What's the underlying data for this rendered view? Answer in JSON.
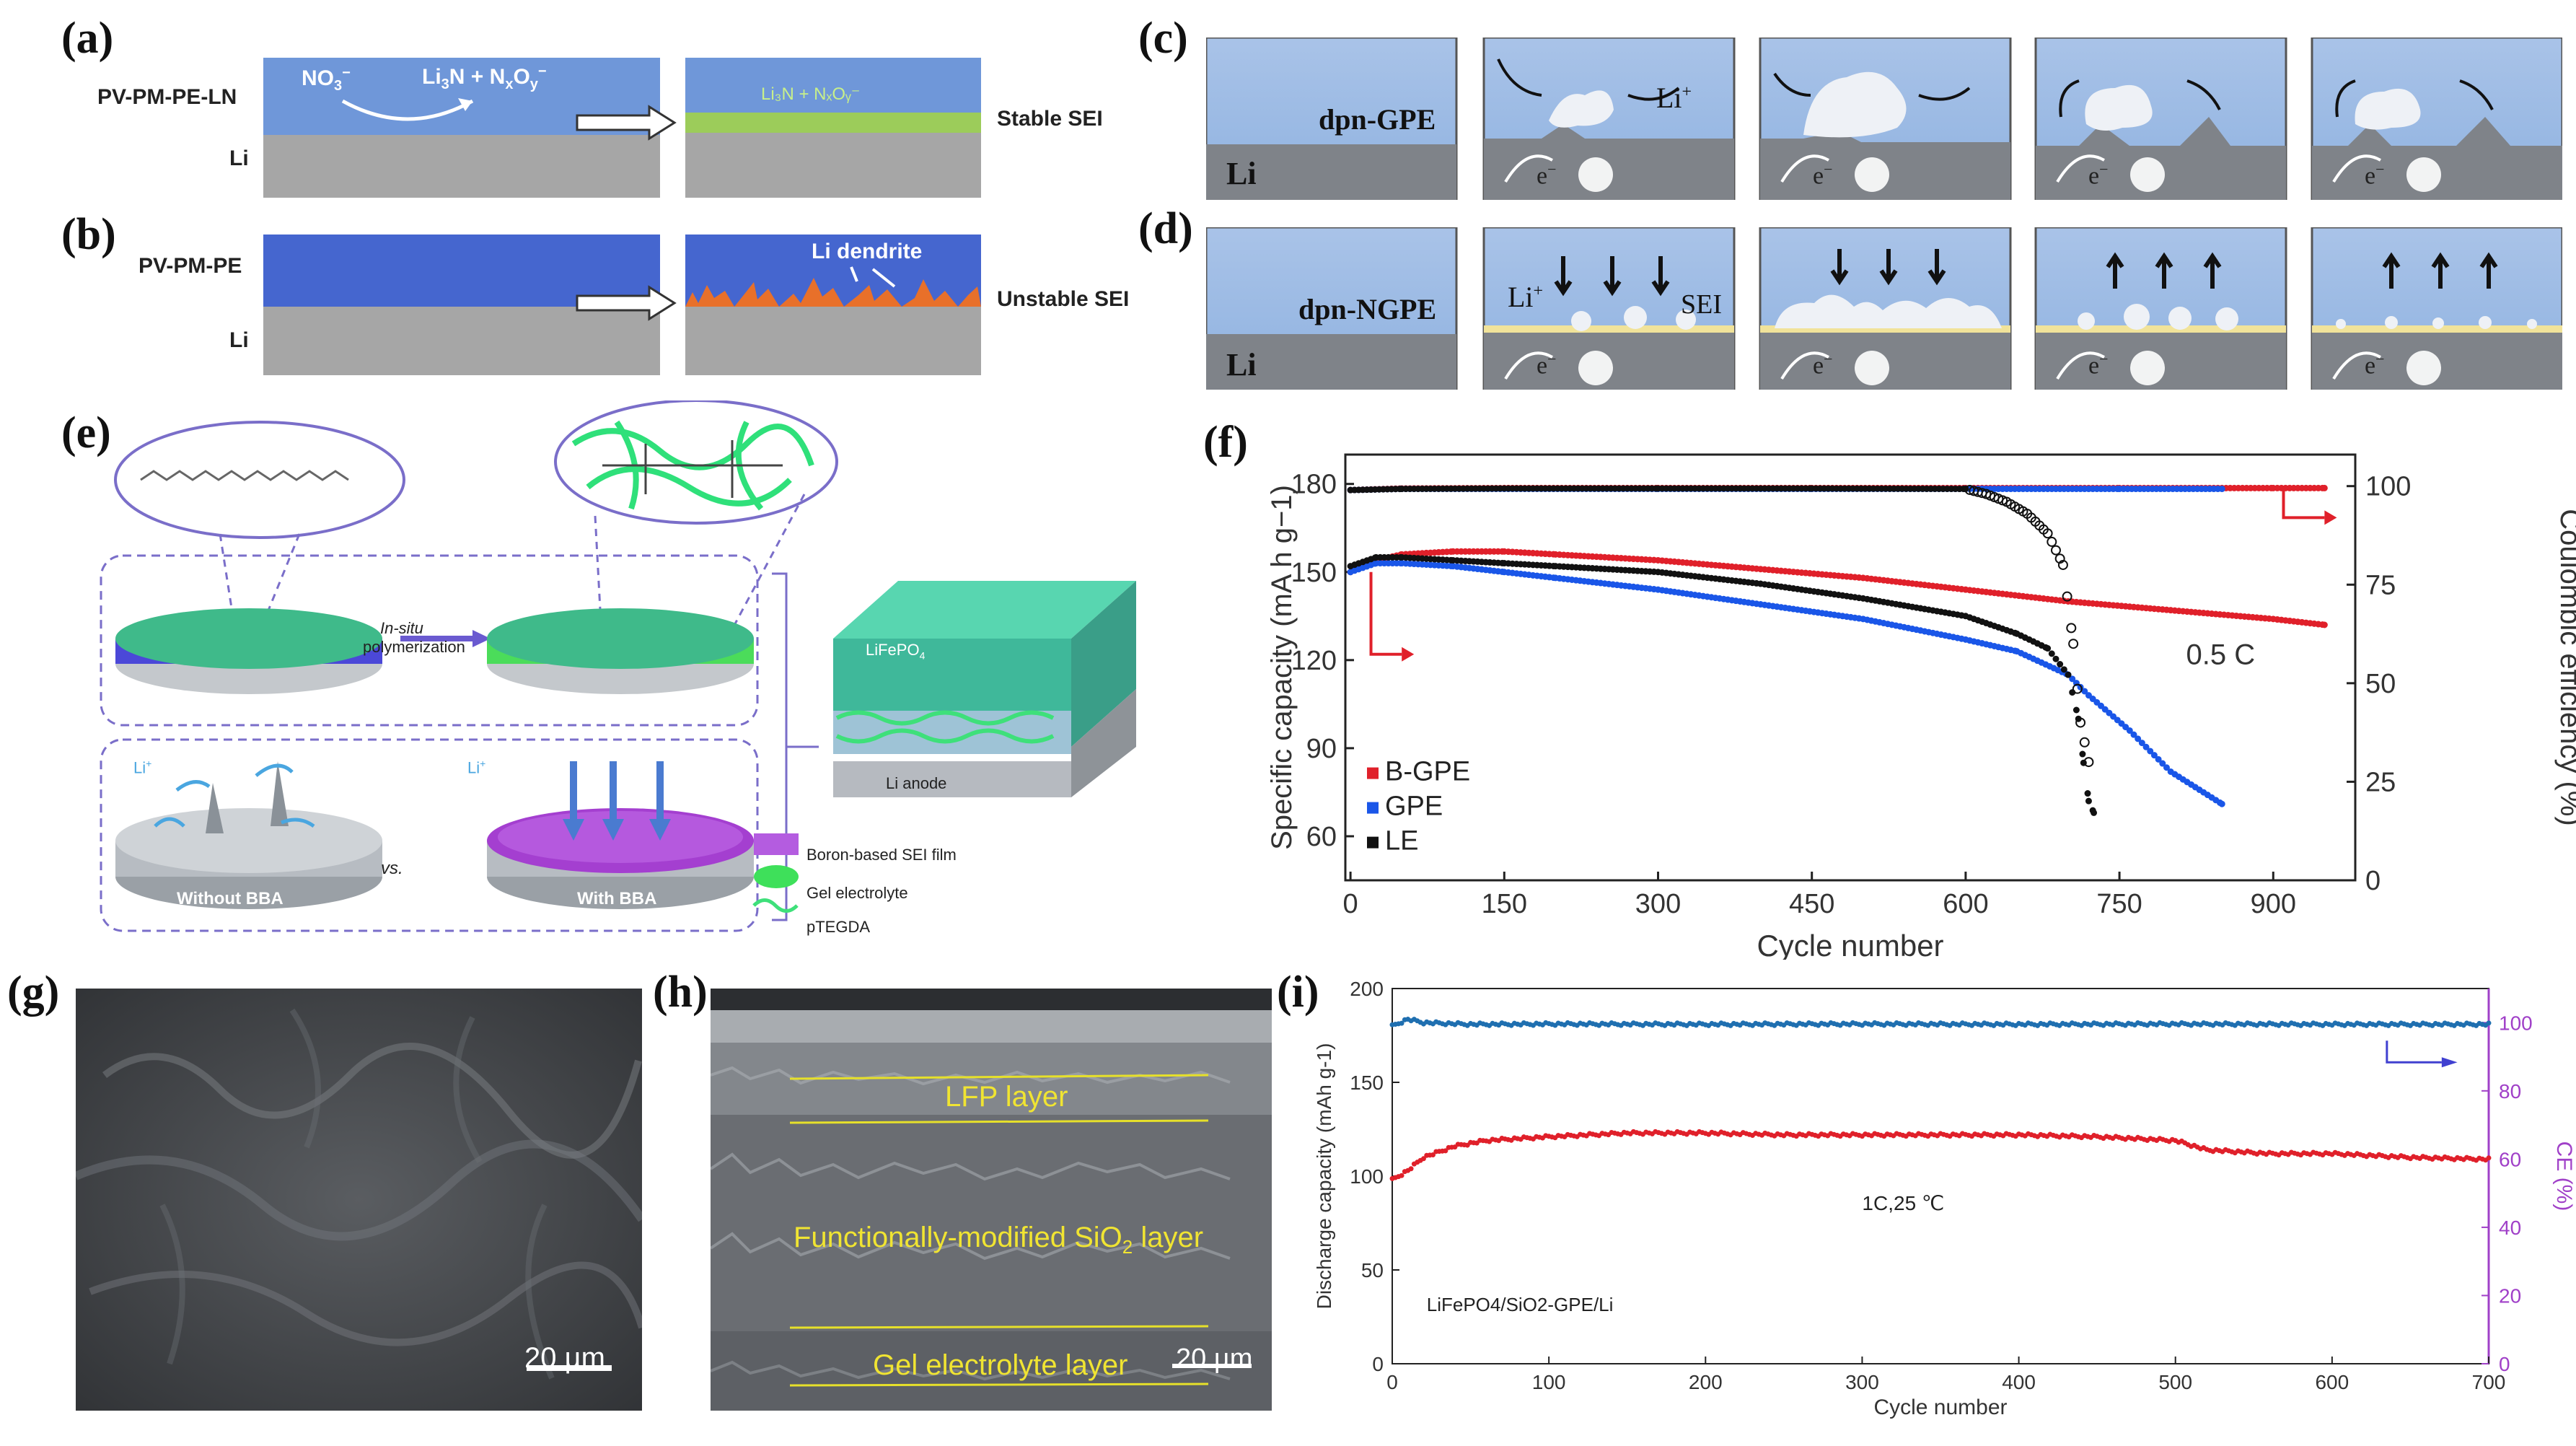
{
  "panel_a": {
    "label": "(a)",
    "layer_top": "PV-PM-PE-LN",
    "layer_bottom": "Li",
    "ion_left": "NO",
    "ion_left_sup": "3",
    "ion_left_charge": "−",
    "ion_right": "Li",
    "ion_right_sub": "3",
    "ion_right_rest": "N + N",
    "ion_right_sub2": "x",
    "ion_right_mid": "O",
    "ion_right_sub3": "y",
    "ion_right_charge": "−",
    "interface_text": "Li₃N + NₓOᵧ⁻",
    "result": "Stable SEI"
  },
  "panel_b": {
    "label": "(b)",
    "layer_top": "PV-PM-PE",
    "layer_bottom": "Li",
    "dendrite": "Li dendrite",
    "result": "Unstable SEI"
  },
  "panel_c": {
    "label": "(c)",
    "electrolyte": "dpn-GPE",
    "metal": "Li",
    "ion": "Li",
    "ion_sup": "+",
    "electron": "e",
    "electron_sup": "−"
  },
  "panel_d": {
    "label": "(d)",
    "electrolyte": "dpn-NGPE",
    "metal": "Li",
    "ion": "Li",
    "ion_sup": "+",
    "sei": "SEI",
    "electron": "e",
    "electron_sup": "−"
  },
  "panel_e": {
    "label": "(e)",
    "step": "In-situ",
    "step2": "polymerization",
    "cathode": "LiFePO",
    "cathode_sub": "4",
    "anode": "Li anode",
    "left_case": "Without BBA",
    "vs": "vs.",
    "right_case": "With BBA",
    "ion": "Li",
    "ion_sup": "+",
    "legend": [
      "Boron-based SEI film",
      "Gel electrolyte",
      "pTEGDA"
    ]
  },
  "panel_g": {
    "label": "(g)",
    "scale": "20 µm"
  },
  "panel_h": {
    "label": "(h)",
    "layer1": "LFP layer",
    "layer2": "Functionally-modified SiO",
    "layer2_sub": "2",
    "layer2_end": " layer",
    "layer3": "Gel electrolyte layer",
    "scale": "20 µm"
  },
  "panel_f": {
    "label": "(f)"
  },
  "panel_i": {
    "label": "(i)"
  },
  "chart_data": [
    {
      "type": "scatter",
      "id": "f",
      "xlabel": "Cycle number",
      "ylabel": "Specific capacity (mA h g",
      "ylabel_sup": "−1",
      "ylabel_end": ")",
      "y2label": "Coulombic efficiency (%)",
      "xlim": [
        -5,
        980
      ],
      "ylim": [
        45,
        190
      ],
      "y2lim": [
        0,
        108
      ],
      "xticks": [
        0,
        150,
        300,
        450,
        600,
        750,
        900
      ],
      "yticks": [
        60,
        90,
        120,
        150,
        180
      ],
      "y2ticks": [
        0,
        25,
        50,
        75,
        100
      ],
      "annotation": "0.5 C",
      "legend": [
        "B-GPE",
        "GPE",
        "LE"
      ],
      "series": [
        {
          "name": "B-GPE",
          "color": "#e0202a",
          "axis": "capacity",
          "x": [
            0,
            25,
            50,
            100,
            150,
            200,
            300,
            400,
            500,
            600,
            700,
            800,
            900,
            950
          ],
          "y": [
            150,
            154,
            156,
            157,
            157,
            156,
            154,
            151,
            148,
            144,
            140,
            137,
            134,
            132
          ]
        },
        {
          "name": "GPE",
          "color": "#1a56e8",
          "axis": "capacity",
          "x": [
            0,
            25,
            50,
            100,
            150,
            200,
            300,
            400,
            500,
            600,
            650,
            700,
            720,
            760,
            800,
            850
          ],
          "y": [
            150,
            153,
            153,
            152,
            150,
            148,
            144,
            139,
            134,
            127,
            123,
            115,
            108,
            96,
            82,
            71
          ]
        },
        {
          "name": "LE",
          "color": "#111111",
          "axis": "capacity",
          "x": [
            0,
            25,
            50,
            100,
            150,
            200,
            300,
            400,
            500,
            600,
            650,
            680,
            700,
            710,
            715,
            720,
            725
          ],
          "y": [
            152,
            155,
            155,
            154,
            153,
            152,
            150,
            146,
            141,
            135,
            129,
            124,
            115,
            100,
            85,
            72,
            68
          ]
        },
        {
          "name": "B-GPE CE",
          "color": "#e0202a",
          "axis": "ce",
          "x": [
            0,
            50,
            150,
            300,
            450,
            600,
            750,
            900,
            950
          ],
          "y": [
            99,
            99.4,
            99.5,
            99.5,
            99.5,
            99.5,
            99.5,
            99.5,
            99.5
          ]
        },
        {
          "name": "GPE CE",
          "color": "#1a56e8",
          "axis": "ce",
          "x": [
            0,
            50,
            150,
            300,
            450,
            600,
            750,
            850
          ],
          "y": [
            99,
            99.3,
            99.3,
            99.3,
            99.3,
            99.3,
            99.3,
            99.3
          ]
        },
        {
          "name": "LE CE",
          "color": "#111111",
          "axis": "ce",
          "x": [
            0,
            50,
            150,
            300,
            450,
            600,
            620,
            640,
            660,
            680,
            695,
            705,
            712,
            720
          ],
          "y": [
            99,
            99.3,
            99.4,
            99.4,
            99.4,
            99.3,
            98,
            96,
            93,
            88,
            80,
            60,
            40,
            30
          ]
        }
      ]
    },
    {
      "type": "scatter",
      "id": "i",
      "xlabel": "Cycle number",
      "ylabel": "Discharge capacity (mAh g",
      "ylabel_sup": "-1",
      "ylabel_end": ")",
      "y2label": "CE (%)",
      "xlim": [
        0,
        700
      ],
      "ylim": [
        0,
        200
      ],
      "y2lim": [
        0,
        110
      ],
      "xticks": [
        0,
        100,
        200,
        300,
        400,
        500,
        600,
        700
      ],
      "yticks": [
        0,
        50,
        100,
        150,
        200
      ],
      "y2ticks": [
        0,
        20,
        40,
        60,
        80,
        100
      ],
      "annotation": "1C,25 ℃",
      "cell": "LiFePO",
      "cell_sub": "4",
      "cell_mid": "/SiO",
      "cell_sub2": "2",
      "cell_end": "-GPE/Li",
      "series": [
        {
          "name": "Capacity",
          "color": "#e0202a",
          "axis": "capacity",
          "x": [
            0,
            10,
            20,
            40,
            60,
            100,
            150,
            200,
            250,
            300,
            350,
            400,
            450,
            500,
            520,
            560,
            600,
            650,
            700
          ],
          "y": [
            98,
            103,
            110,
            116,
            119,
            121,
            123,
            123,
            122,
            122,
            122,
            122,
            121,
            119,
            114,
            112,
            112,
            110,
            109
          ]
        },
        {
          "name": "CE",
          "color": "#1f6fb0",
          "axis": "ce",
          "x": [
            0,
            10,
            20,
            50,
            100,
            200,
            300,
            400,
            500,
            600,
            700
          ],
          "y": [
            99,
            101,
            100,
            99.5,
            99.6,
            99.5,
            99.6,
            99.5,
            99.6,
            99.5,
            99.5
          ]
        }
      ]
    }
  ]
}
